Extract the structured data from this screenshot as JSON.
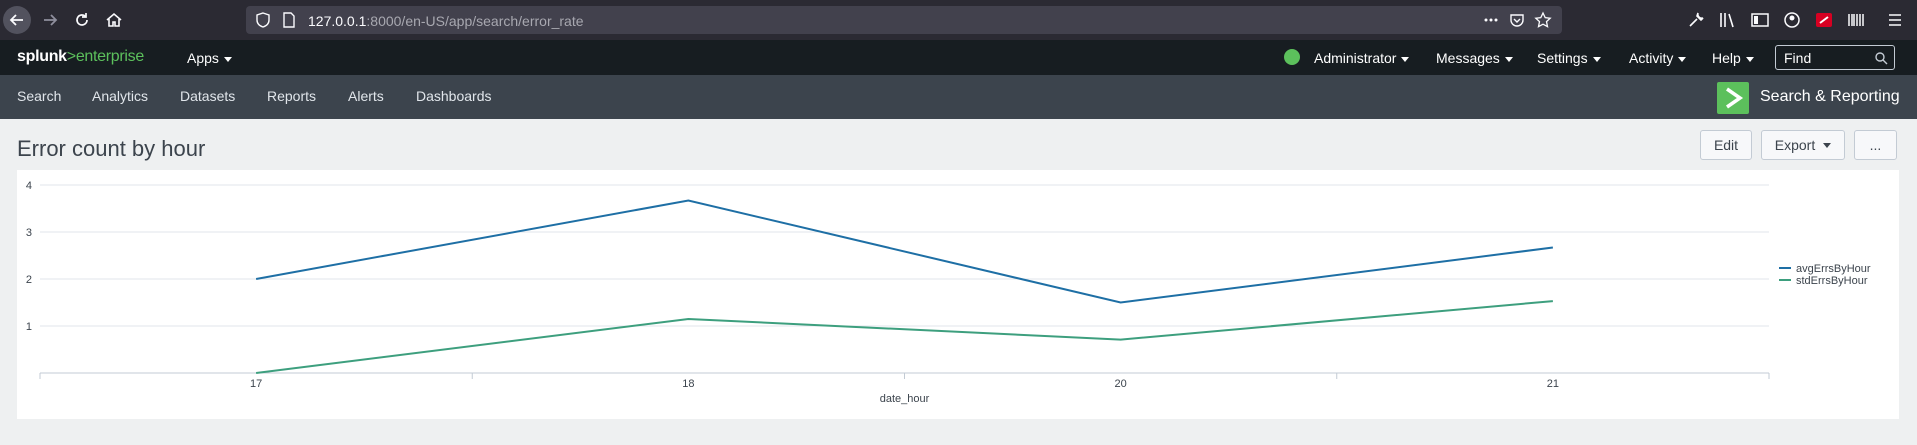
{
  "browser": {
    "url_host": "127.0.0.1",
    "url_rest": ":8000/en-US/app/search/error_rate"
  },
  "splunk": {
    "logo_brand": "splunk",
    "logo_gt": ">",
    "logo_product": "enterprise",
    "apps_label": "Apps",
    "user_label": "Administrator",
    "messages_label": "Messages",
    "settings_label": "Settings",
    "activity_label": "Activity",
    "help_label": "Help",
    "find_placeholder": "Find"
  },
  "app_nav": {
    "items": [
      "Search",
      "Analytics",
      "Datasets",
      "Reports",
      "Alerts",
      "Dashboards"
    ],
    "app_title": "Search & Reporting"
  },
  "dashboard": {
    "title": "Error count by hour",
    "edit_label": "Edit",
    "export_label": "Export",
    "more_label": "..."
  },
  "colors": {
    "series_avg": "#1e6fa5",
    "series_std": "#3d9f7e",
    "accent_green": "#5cc05c"
  },
  "chart_data": {
    "type": "line",
    "title": "",
    "xlabel": "date_hour",
    "ylabel": "",
    "categories": [
      "17",
      "18",
      "20",
      "21"
    ],
    "ylim": [
      0,
      4
    ],
    "yticks": [
      1,
      2,
      3,
      4
    ],
    "grid": true,
    "legend_position": "right",
    "series": [
      {
        "name": "avgErrsByHour",
        "values": [
          2.0,
          3.67,
          1.5,
          2.67
        ],
        "color": "#1e6fa5"
      },
      {
        "name": "stdErrsByHour",
        "values": [
          0.0,
          1.15,
          0.71,
          1.53
        ],
        "color": "#3d9f7e"
      }
    ]
  }
}
